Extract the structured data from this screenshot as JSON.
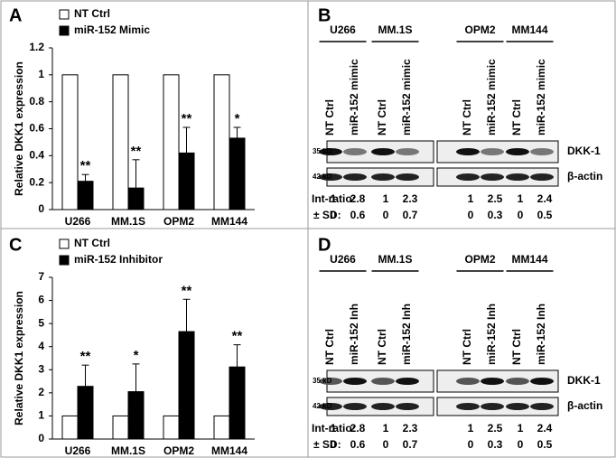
{
  "chart_data": [
    {
      "type": "bar",
      "label": "A",
      "ylabel": "Relative DKK1 expression",
      "categories": [
        "U266",
        "MM.1S",
        "OPM2",
        "MM144"
      ],
      "series": [
        {
          "name": "NT Ctrl",
          "color": "#ffffff",
          "values": [
            1,
            1,
            1,
            1
          ]
        },
        {
          "name": "miR-152 Mimic",
          "color": "#000000",
          "values": [
            0.21,
            0.16,
            0.42,
            0.53
          ],
          "errors": [
            0.05,
            0.21,
            0.19,
            0.08
          ]
        }
      ],
      "annotations": [
        "**",
        "**",
        "**",
        "*"
      ],
      "ylim": [
        0,
        1.2
      ],
      "yticks": [
        0,
        0.2,
        0.4,
        0.6,
        0.8,
        1,
        1.2
      ]
    },
    {
      "type": "bar",
      "label": "C",
      "ylabel": "Relative DKK1 expression",
      "categories": [
        "U266",
        "MM.1S",
        "OPM2",
        "MM144"
      ],
      "series": [
        {
          "name": "NT Ctrl",
          "color": "#ffffff",
          "values": [
            1,
            1,
            1,
            1
          ]
        },
        {
          "name": "miR-152 Inhibitor",
          "color": "#000000",
          "values": [
            2.28,
            2.05,
            4.65,
            3.12
          ],
          "errors": [
            0.92,
            1.2,
            1.4,
            0.96
          ]
        }
      ],
      "annotations": [
        "**",
        "*",
        "**",
        "**"
      ],
      "ylim": [
        0,
        7
      ],
      "yticks": [
        0,
        1,
        2,
        3,
        4,
        5,
        6,
        7
      ]
    }
  ],
  "blots": [
    {
      "label": "B",
      "cell_lines": [
        "U266",
        "MM.1S",
        "OPM2",
        "MM144"
      ],
      "lanes": [
        "NT Ctrl",
        "miR-152 mimic",
        "NT Ctrl",
        "miR-152 mimic",
        "NT Ctrl",
        "miR-152 mimic",
        "NT Ctrl",
        "miR-152 mimic"
      ],
      "markers": [
        "35 kD",
        "42 kD"
      ],
      "proteins": [
        "DKK-1",
        "β-actin"
      ],
      "ratio_label": "Int-ratio:",
      "ratio": [
        1,
        2.8,
        1,
        2.3,
        1,
        2.5,
        1,
        2.4
      ],
      "sd_label": "± SD:",
      "sd": [
        0,
        0.6,
        0,
        0.7,
        0,
        0.3,
        0,
        0.5
      ]
    },
    {
      "label": "D",
      "cell_lines": [
        "U266",
        "MM.1S",
        "OPM2",
        "MM144"
      ],
      "lanes": [
        "NT Ctrl",
        "miR-152 Inh",
        "NT Ctrl",
        "miR-152 Inh",
        "NT Ctrl",
        "miR-152 Inh",
        "NT Ctrl",
        "miR-152 Inh"
      ],
      "markers": [
        "35 kD",
        "42 kD"
      ],
      "proteins": [
        "DKK-1",
        "β-actin"
      ],
      "ratio_label": "Int-ratio:",
      "ratio": [
        1,
        2.8,
        1,
        2.3,
        1,
        2.5,
        1,
        2.4
      ],
      "sd_label": "± SD:",
      "sd": [
        0,
        0.6,
        0,
        0.7,
        0,
        0.3,
        0,
        0.5
      ]
    }
  ]
}
